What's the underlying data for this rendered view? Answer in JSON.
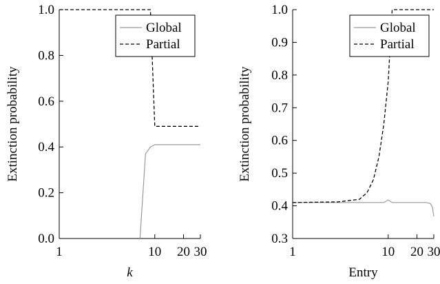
{
  "chart_data": [
    {
      "type": "line",
      "xlabel": "k",
      "ylabel": "Extinction probability",
      "xscale": "log",
      "xlim": [
        1,
        30
      ],
      "ylim": [
        0.0,
        1.0
      ],
      "xticks": [
        1,
        10,
        20,
        30
      ],
      "xtick_labels": [
        "1",
        "10",
        "20",
        "30"
      ],
      "yticks": [
        0.0,
        0.2,
        0.4,
        0.6,
        0.8,
        1.0
      ],
      "ytick_labels": [
        "0.0",
        "0.2",
        "0.4",
        "0.6",
        "0.8",
        "1.0"
      ],
      "grid": false,
      "legend_position": "top-right",
      "series": [
        {
          "name": "Global",
          "style": "solid",
          "color": "#999999",
          "x": [
            7,
            8,
            9,
            10,
            11,
            12,
            14,
            17,
            20,
            25,
            30
          ],
          "y": [
            0.0,
            0.37,
            0.4,
            0.41,
            0.41,
            0.41,
            0.41,
            0.41,
            0.41,
            0.41,
            0.41
          ]
        },
        {
          "name": "Partial",
          "style": "dashed",
          "color": "#000000",
          "x": [
            1,
            9,
            10,
            12,
            15,
            20,
            25,
            30
          ],
          "y": [
            1.0,
            1.0,
            0.49,
            0.49,
            0.49,
            0.49,
            0.49,
            0.49
          ]
        }
      ]
    },
    {
      "type": "line",
      "xlabel": "Entry",
      "ylabel": "Extinction probability",
      "xscale": "log",
      "xlim": [
        1,
        30
      ],
      "ylim": [
        0.3,
        1.0
      ],
      "xticks": [
        1,
        10,
        20,
        30
      ],
      "xtick_labels": [
        "1",
        "10",
        "20",
        "30"
      ],
      "yticks": [
        0.3,
        0.4,
        0.5,
        0.6,
        0.7,
        0.8,
        0.9,
        1.0
      ],
      "ytick_labels": [
        "0.3",
        "0.4",
        "0.5",
        "0.6",
        "0.7",
        "0.8",
        "0.9",
        "1.0"
      ],
      "grid": false,
      "legend_position": "top-right",
      "series": [
        {
          "name": "Global",
          "style": "solid",
          "color": "#999999",
          "x": [
            1,
            3,
            5,
            7,
            9,
            10,
            11,
            13,
            15,
            20,
            25,
            27,
            28,
            29,
            30
          ],
          "y": [
            0.41,
            0.41,
            0.41,
            0.41,
            0.41,
            0.418,
            0.41,
            0.41,
            0.41,
            0.41,
            0.41,
            0.408,
            0.405,
            0.395,
            0.368
          ]
        },
        {
          "name": "Partial",
          "style": "dashed",
          "color": "#000000",
          "x": [
            1,
            3,
            5,
            6,
            7,
            8,
            9,
            10,
            11,
            12,
            15,
            20,
            25,
            30
          ],
          "y": [
            0.41,
            0.412,
            0.42,
            0.44,
            0.48,
            0.55,
            0.65,
            0.78,
            1.0,
            1.0,
            1.0,
            1.0,
            1.0,
            1.0
          ]
        }
      ]
    }
  ]
}
